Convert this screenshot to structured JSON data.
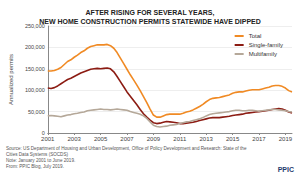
{
  "chart_data": {
    "type": "line",
    "title": "AFTER RISING FOR SEVERAL YEARS,\nNEW HOME CONSTRUCTION PERMITS STATEWIDE HAVE DIPPED",
    "y_label": "Annualized permits",
    "source": [
      "Source: US Department of Housing and Urban Development, Office of Policy Development and Research: State of the",
      "Cities Data Systems (SOCDS)",
      "Note: January 2001 to June 2019.",
      "From: PPIC Blog, July 2019."
    ],
    "logo": "PPIC",
    "x": [
      2001,
      2001.25,
      2001.5,
      2001.75,
      2002,
      2002.25,
      2002.5,
      2002.75,
      2003,
      2003.25,
      2003.5,
      2003.75,
      2004,
      2004.25,
      2004.5,
      2004.75,
      2005,
      2005.25,
      2005.5,
      2005.75,
      2006,
      2006.25,
      2006.5,
      2006.75,
      2007,
      2007.25,
      2007.5,
      2007.75,
      2008,
      2008.25,
      2008.5,
      2008.75,
      2009,
      2009.25,
      2009.5,
      2009.75,
      2010,
      2010.25,
      2010.5,
      2010.75,
      2011,
      2011.25,
      2011.5,
      2011.75,
      2012,
      2012.25,
      2012.5,
      2012.75,
      2013,
      2013.25,
      2013.5,
      2013.75,
      2014,
      2014.25,
      2014.5,
      2014.75,
      2015,
      2015.25,
      2015.5,
      2015.75,
      2016,
      2016.25,
      2016.5,
      2016.75,
      2017,
      2017.25,
      2017.5,
      2017.75,
      2018,
      2018.25,
      2018.5,
      2018.75,
      2019,
      2019.25,
      2019.5
    ],
    "series": [
      {
        "name": "Total",
        "color": "#f08a24",
        "values": [
          145000,
          145000,
          146000,
          149000,
          153000,
          160000,
          167000,
          171000,
          177000,
          182000,
          188000,
          192000,
          198000,
          202000,
          204000,
          206000,
          206000,
          206000,
          207000,
          204000,
          198000,
          188000,
          175000,
          162000,
          149000,
          136000,
          124000,
          112000,
          99000,
          85000,
          71000,
          56000,
          42000,
          37000,
          37000,
          40000,
          43000,
          44000,
          44000,
          44000,
          44000,
          46000,
          49000,
          51000,
          54000,
          58000,
          62000,
          67000,
          73000,
          78000,
          81000,
          82000,
          83000,
          85000,
          87000,
          89000,
          93000,
          95000,
          96000,
          96000,
          98000,
          100000,
          101000,
          101000,
          101000,
          103000,
          105000,
          107000,
          110000,
          111000,
          111000,
          109000,
          105000,
          99000,
          96000
        ]
      },
      {
        "name": "Single-family",
        "color": "#8c1c13",
        "values": [
          105000,
          104000,
          106000,
          110000,
          115000,
          120000,
          125000,
          128000,
          132000,
          136000,
          140000,
          143000,
          146000,
          149000,
          150000,
          151000,
          150000,
          151000,
          152000,
          150000,
          143000,
          132000,
          120000,
          108000,
          96000,
          86000,
          76000,
          66000,
          55000,
          45000,
          37000,
          30000,
          24000,
          22000,
          23000,
          25000,
          27000,
          26000,
          25000,
          24000,
          22000,
          22000,
          23000,
          24000,
          25000,
          27000,
          29000,
          31000,
          33000,
          35000,
          36000,
          36000,
          36000,
          37000,
          38000,
          39000,
          41000,
          42000,
          43000,
          44000,
          46000,
          47000,
          48000,
          49000,
          50000,
          51000,
          52000,
          53000,
          55000,
          56000,
          57000,
          56000,
          53000,
          49000,
          47000
        ]
      },
      {
        "name": "Multifamily",
        "color": "#b5a899",
        "values": [
          40000,
          41000,
          40000,
          39000,
          38000,
          40000,
          42000,
          43000,
          45000,
          46000,
          48000,
          49000,
          52000,
          53000,
          54000,
          55000,
          56000,
          55000,
          55000,
          54000,
          55000,
          56000,
          55000,
          54000,
          53000,
          50000,
          48000,
          46000,
          44000,
          40000,
          34000,
          26000,
          18000,
          15000,
          14000,
          15000,
          16000,
          18000,
          19000,
          20000,
          22000,
          24000,
          26000,
          27000,
          29000,
          31000,
          33000,
          36000,
          40000,
          43000,
          45000,
          46000,
          47000,
          48000,
          49000,
          50000,
          52000,
          53000,
          53000,
          52000,
          52000,
          53000,
          53000,
          52000,
          51000,
          52000,
          53000,
          54000,
          55000,
          55000,
          54000,
          53000,
          52000,
          50000,
          49000
        ]
      }
    ],
    "xlim": [
      2001,
      2019.5
    ],
    "xticks": [
      2001,
      2003,
      2005,
      2007,
      2009,
      2011,
      2013,
      2015,
      2017,
      2019
    ],
    "ylim": [
      0,
      250000
    ],
    "yticks": [
      0,
      {
        "value": 50000,
        "label": "50,000"
      },
      {
        "value": 100000,
        "label": "100,000"
      },
      {
        "value": 150000,
        "label": "150,000"
      },
      {
        "value": 200000,
        "label": "200,000"
      },
      {
        "value": 250000,
        "label": "250,000"
      }
    ],
    "grid": true,
    "legend": "upper right"
  }
}
